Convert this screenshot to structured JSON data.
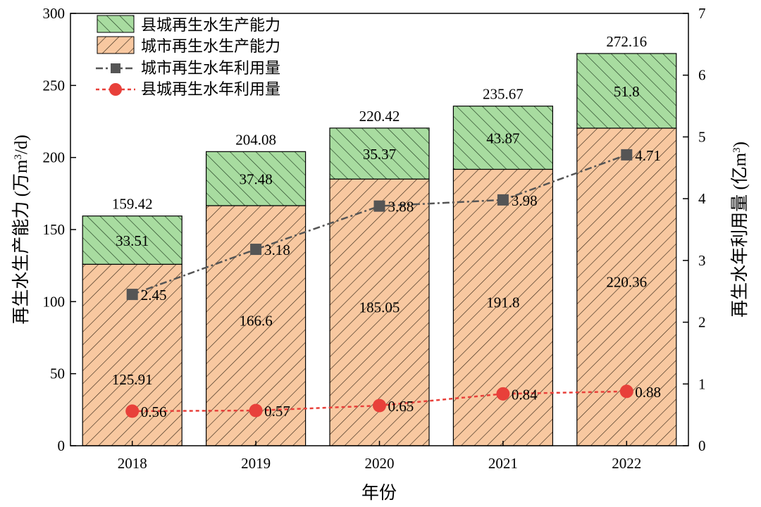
{
  "chart_data": {
    "type": "bar",
    "categories": [
      "2018",
      "2019",
      "2020",
      "2021",
      "2022"
    ],
    "xlabel": "年份",
    "ylabel_left": "再生水生产能力 (万m³/d)",
    "ylabel_left_parts": [
      "再生水生产能力 (万m",
      "3",
      "/d)"
    ],
    "ylabel_right": "再生水年利用量 (亿m³)",
    "ylabel_right_parts": [
      "再生水年利用量 (亿m",
      "3",
      ")"
    ],
    "ylim_left": [
      0,
      300
    ],
    "yticks_left": [
      0,
      50,
      100,
      150,
      200,
      250,
      300
    ],
    "ylim_right": [
      0,
      7
    ],
    "yticks_right": [
      0,
      1,
      2,
      3,
      4,
      5,
      6,
      7
    ],
    "legend_position": "top-left",
    "bar_series": [
      {
        "name": "城市再生水生产能力",
        "values": [
          125.91,
          166.6,
          185.05,
          191.8,
          220.36
        ],
        "color": "#f8c8a0",
        "hatch_color": "#3a2a1a"
      },
      {
        "name": "县城再生水生产能力",
        "values": [
          33.51,
          37.48,
          35.37,
          43.87,
          51.8
        ],
        "color": "#a8dca0",
        "hatch_color": "#1f3a1f"
      }
    ],
    "bar_totals": [
      159.42,
      204.08,
      220.42,
      235.67,
      272.16
    ],
    "line_series": [
      {
        "name": "城市再生水年利用量",
        "values": [
          2.45,
          3.18,
          3.88,
          3.98,
          4.71
        ],
        "color": "#555555",
        "marker": "square"
      },
      {
        "name": "县城再生水年利用量",
        "values": [
          0.56,
          0.57,
          0.65,
          0.84,
          0.88
        ],
        "color": "#e8403a",
        "marker": "circle"
      }
    ]
  }
}
